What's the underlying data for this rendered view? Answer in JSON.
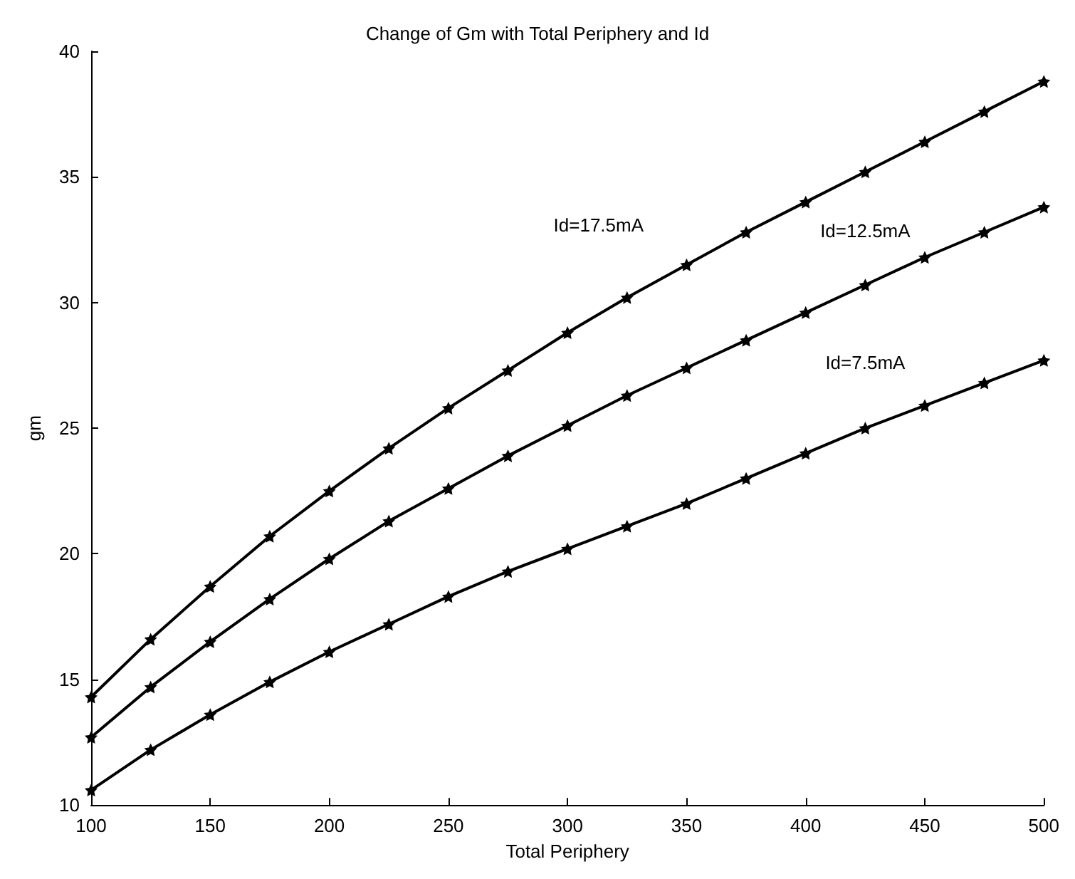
{
  "chart_data": {
    "type": "line",
    "title": "Change of Gm with Total Periphery and Id",
    "xlabel": "Total Periphery",
    "ylabel": "gm",
    "x": [
      100,
      125,
      150,
      175,
      200,
      225,
      250,
      275,
      300,
      325,
      350,
      375,
      400,
      425,
      450,
      475,
      500
    ],
    "series": [
      {
        "name": "Id=17.5mA",
        "color": "#000000",
        "values": [
          14.3,
          16.6,
          18.7,
          20.7,
          22.5,
          24.2,
          25.8,
          27.3,
          28.8,
          30.2,
          31.5,
          32.8,
          34.0,
          35.2,
          36.4,
          37.6,
          38.8
        ]
      },
      {
        "name": "Id=12.5mA",
        "color": "#000000",
        "values": [
          12.7,
          14.7,
          16.5,
          18.2,
          19.8,
          21.3,
          22.6,
          23.9,
          25.1,
          26.3,
          27.4,
          28.5,
          29.6,
          30.7,
          31.8,
          32.8,
          33.8
        ]
      },
      {
        "name": "Id=7.5mA",
        "color": "#000000",
        "values": [
          10.6,
          12.2,
          13.6,
          14.9,
          16.1,
          17.2,
          18.3,
          19.3,
          20.2,
          21.1,
          22.0,
          23.0,
          24.0,
          25.0,
          25.9,
          26.8,
          27.7
        ]
      }
    ],
    "xlim": [
      100,
      500
    ],
    "xticks": [
      100,
      150,
      200,
      250,
      300,
      350,
      400,
      450,
      500
    ],
    "ylim": [
      10,
      40
    ],
    "yticks": [
      10,
      15,
      20,
      25,
      30,
      35,
      40
    ],
    "grid": false,
    "legend": false,
    "marker": "star",
    "line_style": "solid"
  }
}
